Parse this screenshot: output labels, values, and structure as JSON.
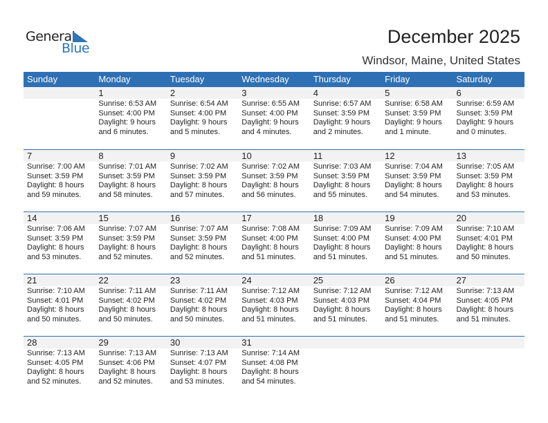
{
  "logo": {
    "text1": "General",
    "text2": "Blue",
    "color": "#2e75b6"
  },
  "title": "December 2025",
  "location": "Windsor, Maine, United States",
  "header_color": "#2e70b3",
  "days": [
    "Sunday",
    "Monday",
    "Tuesday",
    "Wednesday",
    "Thursday",
    "Friday",
    "Saturday"
  ],
  "weeks": [
    [
      null,
      {
        "day": "1",
        "sunrise": "Sunrise: 6:53 AM",
        "sunset": "Sunset: 4:00 PM",
        "daylight": "Daylight: 9 hours",
        "minutes": "and 6 minutes."
      },
      {
        "day": "2",
        "sunrise": "Sunrise: 6:54 AM",
        "sunset": "Sunset: 4:00 PM",
        "daylight": "Daylight: 9 hours",
        "minutes": "and 5 minutes."
      },
      {
        "day": "3",
        "sunrise": "Sunrise: 6:55 AM",
        "sunset": "Sunset: 4:00 PM",
        "daylight": "Daylight: 9 hours",
        "minutes": "and 4 minutes."
      },
      {
        "day": "4",
        "sunrise": "Sunrise: 6:57 AM",
        "sunset": "Sunset: 3:59 PM",
        "daylight": "Daylight: 9 hours",
        "minutes": "and 2 minutes."
      },
      {
        "day": "5",
        "sunrise": "Sunrise: 6:58 AM",
        "sunset": "Sunset: 3:59 PM",
        "daylight": "Daylight: 9 hours",
        "minutes": "and 1 minute."
      },
      {
        "day": "6",
        "sunrise": "Sunrise: 6:59 AM",
        "sunset": "Sunset: 3:59 PM",
        "daylight": "Daylight: 9 hours",
        "minutes": "and 0 minutes."
      }
    ],
    [
      {
        "day": "7",
        "sunrise": "Sunrise: 7:00 AM",
        "sunset": "Sunset: 3:59 PM",
        "daylight": "Daylight: 8 hours",
        "minutes": "and 59 minutes."
      },
      {
        "day": "8",
        "sunrise": "Sunrise: 7:01 AM",
        "sunset": "Sunset: 3:59 PM",
        "daylight": "Daylight: 8 hours",
        "minutes": "and 58 minutes."
      },
      {
        "day": "9",
        "sunrise": "Sunrise: 7:02 AM",
        "sunset": "Sunset: 3:59 PM",
        "daylight": "Daylight: 8 hours",
        "minutes": "and 57 minutes."
      },
      {
        "day": "10",
        "sunrise": "Sunrise: 7:02 AM",
        "sunset": "Sunset: 3:59 PM",
        "daylight": "Daylight: 8 hours",
        "minutes": "and 56 minutes."
      },
      {
        "day": "11",
        "sunrise": "Sunrise: 7:03 AM",
        "sunset": "Sunset: 3:59 PM",
        "daylight": "Daylight: 8 hours",
        "minutes": "and 55 minutes."
      },
      {
        "day": "12",
        "sunrise": "Sunrise: 7:04 AM",
        "sunset": "Sunset: 3:59 PM",
        "daylight": "Daylight: 8 hours",
        "minutes": "and 54 minutes."
      },
      {
        "day": "13",
        "sunrise": "Sunrise: 7:05 AM",
        "sunset": "Sunset: 3:59 PM",
        "daylight": "Daylight: 8 hours",
        "minutes": "and 53 minutes."
      }
    ],
    [
      {
        "day": "14",
        "sunrise": "Sunrise: 7:06 AM",
        "sunset": "Sunset: 3:59 PM",
        "daylight": "Daylight: 8 hours",
        "minutes": "and 53 minutes."
      },
      {
        "day": "15",
        "sunrise": "Sunrise: 7:07 AM",
        "sunset": "Sunset: 3:59 PM",
        "daylight": "Daylight: 8 hours",
        "minutes": "and 52 minutes."
      },
      {
        "day": "16",
        "sunrise": "Sunrise: 7:07 AM",
        "sunset": "Sunset: 3:59 PM",
        "daylight": "Daylight: 8 hours",
        "minutes": "and 52 minutes."
      },
      {
        "day": "17",
        "sunrise": "Sunrise: 7:08 AM",
        "sunset": "Sunset: 4:00 PM",
        "daylight": "Daylight: 8 hours",
        "minutes": "and 51 minutes."
      },
      {
        "day": "18",
        "sunrise": "Sunrise: 7:09 AM",
        "sunset": "Sunset: 4:00 PM",
        "daylight": "Daylight: 8 hours",
        "minutes": "and 51 minutes."
      },
      {
        "day": "19",
        "sunrise": "Sunrise: 7:09 AM",
        "sunset": "Sunset: 4:00 PM",
        "daylight": "Daylight: 8 hours",
        "minutes": "and 51 minutes."
      },
      {
        "day": "20",
        "sunrise": "Sunrise: 7:10 AM",
        "sunset": "Sunset: 4:01 PM",
        "daylight": "Daylight: 8 hours",
        "minutes": "and 50 minutes."
      }
    ],
    [
      {
        "day": "21",
        "sunrise": "Sunrise: 7:10 AM",
        "sunset": "Sunset: 4:01 PM",
        "daylight": "Daylight: 8 hours",
        "minutes": "and 50 minutes."
      },
      {
        "day": "22",
        "sunrise": "Sunrise: 7:11 AM",
        "sunset": "Sunset: 4:02 PM",
        "daylight": "Daylight: 8 hours",
        "minutes": "and 50 minutes."
      },
      {
        "day": "23",
        "sunrise": "Sunrise: 7:11 AM",
        "sunset": "Sunset: 4:02 PM",
        "daylight": "Daylight: 8 hours",
        "minutes": "and 50 minutes."
      },
      {
        "day": "24",
        "sunrise": "Sunrise: 7:12 AM",
        "sunset": "Sunset: 4:03 PM",
        "daylight": "Daylight: 8 hours",
        "minutes": "and 51 minutes."
      },
      {
        "day": "25",
        "sunrise": "Sunrise: 7:12 AM",
        "sunset": "Sunset: 4:03 PM",
        "daylight": "Daylight: 8 hours",
        "minutes": "and 51 minutes."
      },
      {
        "day": "26",
        "sunrise": "Sunrise: 7:12 AM",
        "sunset": "Sunset: 4:04 PM",
        "daylight": "Daylight: 8 hours",
        "minutes": "and 51 minutes."
      },
      {
        "day": "27",
        "sunrise": "Sunrise: 7:13 AM",
        "sunset": "Sunset: 4:05 PM",
        "daylight": "Daylight: 8 hours",
        "minutes": "and 51 minutes."
      }
    ],
    [
      {
        "day": "28",
        "sunrise": "Sunrise: 7:13 AM",
        "sunset": "Sunset: 4:05 PM",
        "daylight": "Daylight: 8 hours",
        "minutes": "and 52 minutes."
      },
      {
        "day": "29",
        "sunrise": "Sunrise: 7:13 AM",
        "sunset": "Sunset: 4:06 PM",
        "daylight": "Daylight: 8 hours",
        "minutes": "and 52 minutes."
      },
      {
        "day": "30",
        "sunrise": "Sunrise: 7:13 AM",
        "sunset": "Sunset: 4:07 PM",
        "daylight": "Daylight: 8 hours",
        "minutes": "and 53 minutes."
      },
      {
        "day": "31",
        "sunrise": "Sunrise: 7:14 AM",
        "sunset": "Sunset: 4:08 PM",
        "daylight": "Daylight: 8 hours",
        "minutes": "and 54 minutes."
      },
      null,
      null,
      null
    ]
  ]
}
